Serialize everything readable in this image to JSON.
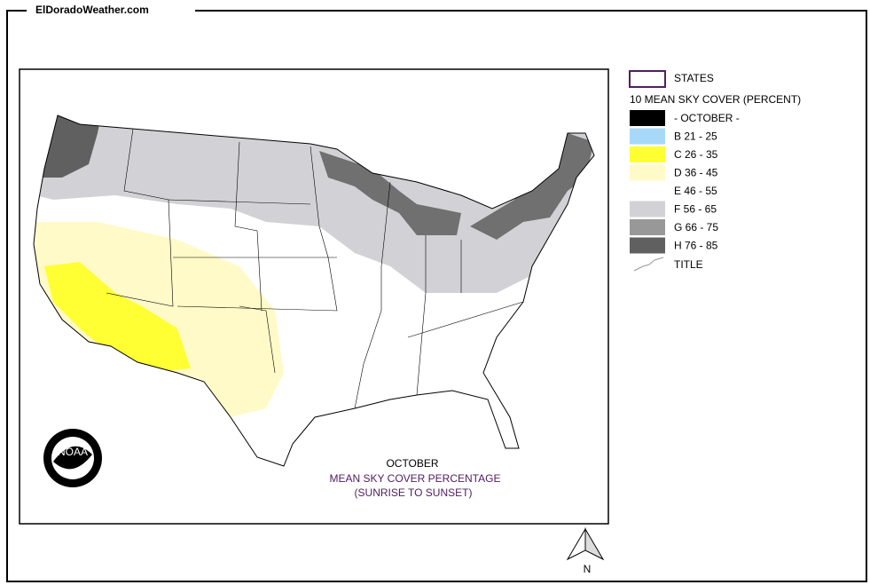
{
  "header": {
    "site": "ElDoradoWeather.com"
  },
  "legend": {
    "states": "STATES",
    "title": "10 MEAN SKY COVER (PERCENT)",
    "items": [
      {
        "label": "- OCTOBER -",
        "color": "#000000"
      },
      {
        "label": "B 21 - 25",
        "color": "#a8d8f8"
      },
      {
        "label": "C 26 - 35",
        "color": "#ffff33"
      },
      {
        "label": "D 36 - 45",
        "color": "#fffac8"
      },
      {
        "label": "E 46 - 55",
        "color": "#ffffff"
      },
      {
        "label": "F 56 - 65",
        "color": "#d2d2d6"
      },
      {
        "label": "G 66 - 75",
        "color": "#989898"
      },
      {
        "label": "H 76 - 85",
        "color": "#606060"
      }
    ],
    "title_item": "TITLE"
  },
  "map": {
    "caption": [
      "OCTOBER",
      "MEAN SKY COVER PERCENTAGE",
      "(SUNRISE TO SUNSET)"
    ],
    "logo": "NOAA",
    "north": "N"
  }
}
